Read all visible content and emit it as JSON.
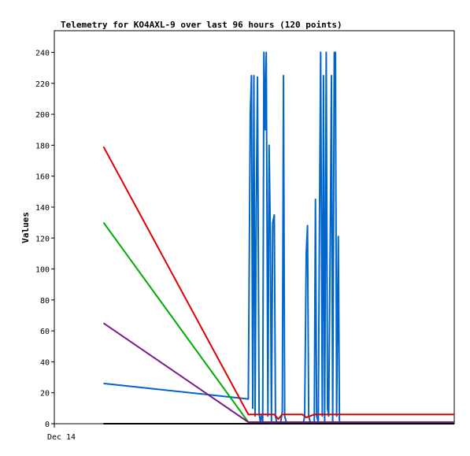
{
  "chart_data": {
    "type": "line",
    "title": "Telemetry for KO4AXL-9 over last 96 hours (120 points)",
    "xlabel": "",
    "ylabel": "Values",
    "x_tick_labels": [
      "Dec 14"
    ],
    "ylim": [
      0,
      254
    ],
    "y_ticks": [
      0,
      20,
      40,
      60,
      80,
      100,
      120,
      140,
      160,
      180,
      200,
      220,
      240
    ],
    "xlim": [
      0,
      100
    ],
    "grid": false,
    "legend": "none",
    "series": [
      {
        "color": "#0066cc",
        "x": [
          12.3,
          48.5,
          49.0,
          49.3,
          49.6,
          49.9,
          50.2,
          50.5,
          50.8,
          51.2,
          51.5,
          51.8,
          52.1,
          52.4,
          52.7,
          53.0,
          53.4,
          53.7,
          54.0,
          54.3,
          54.6,
          55.0,
          55.3,
          55.6,
          56.0,
          56.3,
          56.6,
          57.0,
          57.3,
          57.6,
          58.0,
          58.3,
          58.6,
          59.0,
          59.3,
          59.6,
          60.0,
          60.3,
          60.6,
          61.0,
          61.3,
          61.6,
          62.0,
          62.3,
          62.6,
          63.0,
          63.3,
          63.6,
          64.0,
          64.3,
          64.6,
          65.0,
          65.3,
          65.6,
          66.0,
          66.3,
          66.6,
          67.0,
          67.3,
          67.6,
          68.0,
          68.3,
          68.6,
          69.0,
          69.3,
          69.6,
          70.0,
          70.3,
          70.6,
          71.0,
          71.3,
          71.6,
          72.0,
          72.3,
          72.6,
          73.0
        ],
        "values": [
          26,
          16,
          200,
          225,
          10,
          225,
          5,
          140,
          224,
          7,
          1,
          5,
          1,
          240,
          190,
          240,
          5,
          180,
          125,
          1,
          130,
          135,
          5,
          1,
          1,
          1,
          1,
          8,
          225,
          5,
          1,
          1,
          1,
          1,
          1,
          1,
          1,
          1,
          1,
          1,
          1,
          1,
          1,
          1,
          5,
          110,
          128,
          5,
          1,
          1,
          1,
          1,
          145,
          5,
          1,
          130,
          240,
          5,
          225,
          1,
          240,
          10,
          5,
          120,
          225,
          1,
          240,
          240,
          5,
          121,
          1,
          1,
          1,
          1,
          1,
          1
        ]
      },
      {
        "color": "#e00000",
        "x": [
          12.3,
          48.5,
          49.0,
          55.0,
          56.0,
          57.0,
          58.0,
          62.0,
          63.0,
          64.0,
          65.0,
          100.0
        ],
        "values": [
          179,
          6,
          6,
          6,
          3,
          6,
          6,
          6,
          4,
          5,
          6,
          6
        ]
      },
      {
        "color": "#00aa00",
        "x": [
          12.3,
          48.5,
          100.0
        ],
        "values": [
          130,
          1,
          1
        ]
      },
      {
        "color": "#7a1a8a",
        "x": [
          12.3,
          48.5,
          100.0
        ],
        "values": [
          65,
          1,
          1
        ]
      },
      {
        "color": "#000000",
        "x": [
          12.3,
          100.0
        ],
        "values": [
          0,
          0
        ]
      }
    ]
  }
}
